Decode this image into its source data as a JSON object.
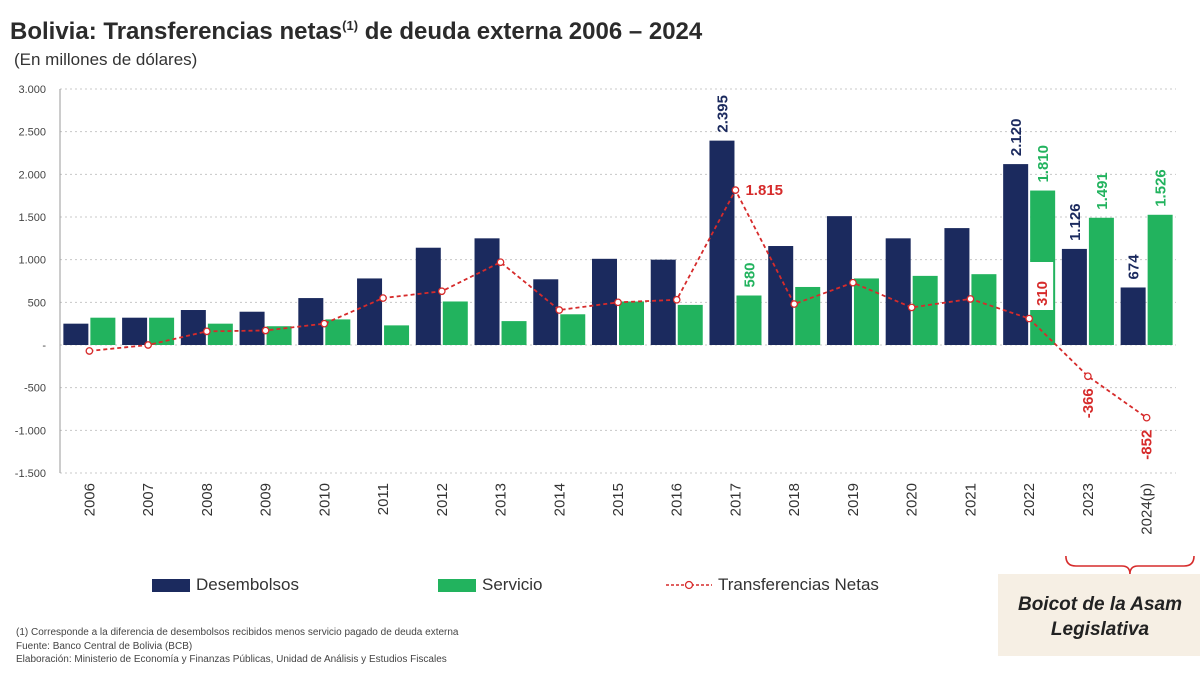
{
  "title_main": "Bolivia: Transferencias netas",
  "title_sup": "(1)",
  "title_rest": " de deuda externa 2006 – 2024",
  "subtitle": "(En millones de dólares)",
  "legend": {
    "desembolsos": "Desembolsos",
    "servicio": "Servicio",
    "transferencias": "Transferencias Netas"
  },
  "footnotes": [
    "(1) Corresponde a la diferencia de desembolsos recibidos menos servicio pagado de deuda externa",
    "Fuente: Banco Central de Bolivia (BCB)",
    "Elaboración: Ministerio de Economía y Finanzas Públicas, Unidad de Análisis y Estudios Fiscales"
  ],
  "annotation": {
    "line1": "Boicot de la Asam",
    "line2": "Legislativa"
  },
  "colors": {
    "desembolsos": "#1b2a5e",
    "servicio": "#22b35e",
    "transferencias": "#d62b2b",
    "grid": "#c8c8c8",
    "bracket": "#d62b2b"
  },
  "chart_data": {
    "type": "bar",
    "categories": [
      "2006",
      "2007",
      "2008",
      "2009",
      "2010",
      "2011",
      "2012",
      "2013",
      "2014",
      "2015",
      "2016",
      "2017",
      "2018",
      "2019",
      "2020",
      "2021",
      "2022",
      "2023",
      "2024(p)"
    ],
    "series": [
      {
        "name": "Desembolsos",
        "type": "bar",
        "values": [
          250,
          320,
          410,
          390,
          550,
          780,
          1140,
          1250,
          770,
          1010,
          1000,
          2395,
          1160,
          1510,
          1250,
          1370,
          2120,
          1126,
          674
        ]
      },
      {
        "name": "Servicio",
        "type": "bar",
        "values": [
          320,
          320,
          250,
          220,
          300,
          230,
          510,
          280,
          360,
          510,
          470,
          580,
          680,
          780,
          810,
          830,
          1810,
          1491,
          1526
        ]
      },
      {
        "name": "Transferencias Netas",
        "type": "line",
        "values": [
          -70,
          0,
          160,
          170,
          250,
          550,
          630,
          970,
          410,
          500,
          530,
          1815,
          480,
          730,
          440,
          540,
          310,
          -366,
          -852
        ]
      }
    ],
    "data_labels": {
      "desembolsos": {
        "2017": "2.395",
        "2022": "2.120",
        "2023": "1.126",
        "2024(p)": "674"
      },
      "servicio": {
        "2017": "580",
        "2022": "1.810",
        "2023": "1.491",
        "2024(p)": "1.526"
      },
      "transferencias": {
        "2017": "1.815",
        "2022": "310",
        "2023": "-366",
        "2024(p)": "-852"
      }
    },
    "y_ticks": [
      3000,
      2500,
      2000,
      1500,
      1000,
      500,
      0,
      -500,
      -1000,
      -1500
    ],
    "y_tick_labels": [
      "3.000",
      "2.500",
      "2.000",
      "1.500",
      "1.000",
      "500",
      "-",
      "-500",
      "-1.000",
      "-1.500"
    ],
    "ylim": [
      -1500,
      3000
    ],
    "grid": true,
    "legend_position": "bottom"
  }
}
